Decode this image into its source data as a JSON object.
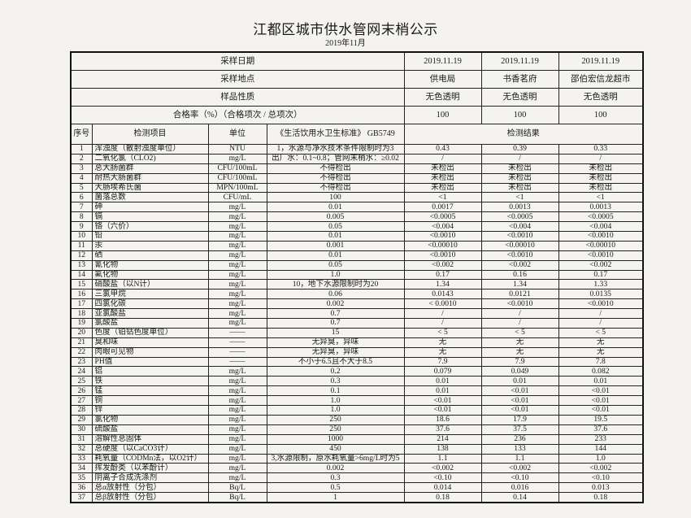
{
  "header": {
    "title": "江都区城市供水管网末梢公示",
    "subtitle": "2019年11月"
  },
  "summary": [
    {
      "label": "采样日期",
      "values": [
        "2019.11.19",
        "2019.11.19",
        "2019.11.19"
      ]
    },
    {
      "label": "采样地点",
      "values": [
        "供电局",
        "书香茗府",
        "邵伯宏信龙超市"
      ]
    },
    {
      "label": "样品性质",
      "values": [
        "无色透明",
        "无色透明",
        "无色透明"
      ]
    },
    {
      "label": "合格率（%）（合格项次 / 总项次）",
      "values": [
        "100",
        "100",
        "100"
      ]
    }
  ],
  "columns": {
    "no": "序号",
    "item": "检测项目",
    "unit": "单位",
    "standard": "《生活饮用水卫生标准》 GB5749",
    "results": "检测结果"
  },
  "rows": [
    {
      "no": "1",
      "item": "浑浊度（散射浊度单位）",
      "unit": "NTU",
      "standard": "1，水源与净水技术条件限制时为3",
      "results": [
        "0.43",
        "0.39",
        "0.33"
      ]
    },
    {
      "no": "2",
      "item": "二氧化氯（CLO2)",
      "unit": "mg/L",
      "standard": "出厂水：0.1~0.8；管网末梢水：≥0.02",
      "results": [
        "/",
        "/",
        "/"
      ]
    },
    {
      "no": "3",
      "item": "总大肠菌群",
      "unit": "CFU/100mL",
      "standard": "不得检出",
      "results": [
        "未检出",
        "未检出",
        "未检出"
      ]
    },
    {
      "no": "4",
      "item": "耐热大肠菌群",
      "unit": "CFU/100mL",
      "standard": "不得检出",
      "results": [
        "未检出",
        "未检出",
        "未检出"
      ]
    },
    {
      "no": "5",
      "item": "大肠埃希氏菌",
      "unit": "MPN/100mL",
      "standard": "不得检出",
      "results": [
        "未检出",
        "未检出",
        "未检出"
      ]
    },
    {
      "no": "6",
      "item": "菌落总数",
      "unit": "CFU/mL",
      "standard": "100",
      "results": [
        "<1",
        "<1",
        "<1"
      ]
    },
    {
      "no": "7",
      "item": "砷",
      "unit": "mg/L",
      "standard": "0.01",
      "results": [
        "0.0017",
        "0.0013",
        "0.0013"
      ]
    },
    {
      "no": "8",
      "item": "镉",
      "unit": "mg/L",
      "standard": "0.005",
      "results": [
        "<0.0005",
        "<0.0005",
        "<0.0005"
      ]
    },
    {
      "no": "9",
      "item": "铬（六价）",
      "unit": "mg/L",
      "standard": "0.05",
      "results": [
        "<0.004",
        "<0.004",
        "<0.004"
      ]
    },
    {
      "no": "10",
      "item": "铅",
      "unit": "mg/L",
      "standard": "0.01",
      "results": [
        "<0.0010",
        "<0.0010",
        "<0.0010"
      ]
    },
    {
      "no": "11",
      "item": "汞",
      "unit": "mg/L",
      "standard": "0.001",
      "results": [
        "<0.00010",
        "<0.00010",
        "<0.00010"
      ]
    },
    {
      "no": "12",
      "item": "硒",
      "unit": "mg/L",
      "standard": "0.01",
      "results": [
        "<0.0010",
        "<0.0010",
        "<0.0010"
      ]
    },
    {
      "no": "13",
      "item": "氰化物",
      "unit": "mg/L",
      "standard": "0.05",
      "results": [
        "<0.002",
        "<0.002",
        "<0.002"
      ]
    },
    {
      "no": "14",
      "item": "氟化物",
      "unit": "mg/L",
      "standard": "1.0",
      "results": [
        "0.17",
        "0.16",
        "0.17"
      ]
    },
    {
      "no": "15",
      "item": "硝酸盐（以N计）",
      "unit": "mg/L",
      "standard": "10，地下水源限制时为20",
      "results": [
        "1.34",
        "1.34",
        "1.33"
      ]
    },
    {
      "no": "16",
      "item": "三氯甲烷",
      "unit": "mg/L",
      "standard": "0.06",
      "results": [
        "0.0143",
        "0.0121",
        "0.0135"
      ]
    },
    {
      "no": "17",
      "item": "四氯化碳",
      "unit": "mg/L",
      "standard": "0.002",
      "results": [
        "< 0.0010",
        "<0.0010",
        "<0.0010"
      ]
    },
    {
      "no": "18",
      "item": "亚氯酸盐",
      "unit": "mg/L",
      "standard": "0.7",
      "results": [
        "/",
        "/",
        "/"
      ]
    },
    {
      "no": "19",
      "item": "氯酸盐",
      "unit": "mg/L",
      "standard": "0.7",
      "results": [
        "/",
        "/",
        "/"
      ]
    },
    {
      "no": "20",
      "item": "色度（铂钴色度单位）",
      "unit": "——",
      "standard": "15",
      "results": [
        "< 5",
        "< 5",
        "< 5"
      ]
    },
    {
      "no": "21",
      "item": "臭和味",
      "unit": "——",
      "standard": "无异臭，异味",
      "results": [
        "无",
        "无",
        "无"
      ]
    },
    {
      "no": "22",
      "item": "肉眼可见物",
      "unit": "——",
      "standard": "无异臭，异味",
      "results": [
        "无",
        "无",
        "无"
      ]
    },
    {
      "no": "23",
      "item": "PH值",
      "unit": "——",
      "standard": "不小于6.5且不大于8.5",
      "results": [
        "7.9",
        "7.9",
        "7.8"
      ]
    },
    {
      "no": "24",
      "item": "铝",
      "unit": "mg/L",
      "standard": "0.2",
      "results": [
        "0.079",
        "0.049",
        "0.082"
      ]
    },
    {
      "no": "25",
      "item": "铁",
      "unit": "mg/L",
      "standard": "0.3",
      "results": [
        "0.01",
        "0.01",
        "0.01"
      ]
    },
    {
      "no": "26",
      "item": "锰",
      "unit": "mg/L",
      "standard": "0.1",
      "results": [
        "0.01",
        "<0.01",
        "<0.01"
      ]
    },
    {
      "no": "27",
      "item": "铜",
      "unit": "mg/L",
      "standard": "1.0",
      "results": [
        "<0.01",
        "<0.01",
        "<0.01"
      ]
    },
    {
      "no": "28",
      "item": "锌",
      "unit": "mg/L",
      "standard": "1.0",
      "results": [
        "<0.01",
        "<0.01",
        "<0.01"
      ]
    },
    {
      "no": "29",
      "item": "氯化物",
      "unit": "mg/L",
      "standard": "250",
      "results": [
        "18.6",
        "17.9",
        "19.5"
      ]
    },
    {
      "no": "30",
      "item": "硫酸盐",
      "unit": "mg/L",
      "standard": "250",
      "results": [
        "37.6",
        "37.5",
        "37.6"
      ]
    },
    {
      "no": "31",
      "item": "溶解性总固体",
      "unit": "mg/L",
      "standard": "1000",
      "results": [
        "214",
        "236",
        "233"
      ]
    },
    {
      "no": "32",
      "item": "总硬度（以CaCO3计）",
      "unit": "mg/L",
      "standard": "450",
      "results": [
        "138",
        "133",
        "144"
      ]
    },
    {
      "no": "33",
      "item": "耗氧量（CODMn法，以O2计）",
      "unit": "mg/L",
      "standard": "3,水源限制，原水耗氧量>6mg/L时为5",
      "results": [
        "1.1",
        "1.1",
        "1.0"
      ]
    },
    {
      "no": "34",
      "item": "挥发酚类（以苯酚计）",
      "unit": "mg/L",
      "standard": "0.002",
      "results": [
        "<0.002",
        "<0.002",
        "<0.002"
      ]
    },
    {
      "no": "35",
      "item": "阴离子合成洗涤剂",
      "unit": "mg/L",
      "standard": "0.3",
      "results": [
        "<0.10",
        "<0.10",
        "<0.10"
      ]
    },
    {
      "no": "36",
      "item": "总α放射性（分包）",
      "unit": "Bq/L",
      "standard": "0.5",
      "results": [
        "0.014",
        "0.016",
        "0.013"
      ]
    },
    {
      "no": "37",
      "item": "总β放射性（分包）",
      "unit": "Bq/L",
      "standard": "1",
      "results": [
        "0.18",
        "0.14",
        "0.18"
      ]
    }
  ]
}
